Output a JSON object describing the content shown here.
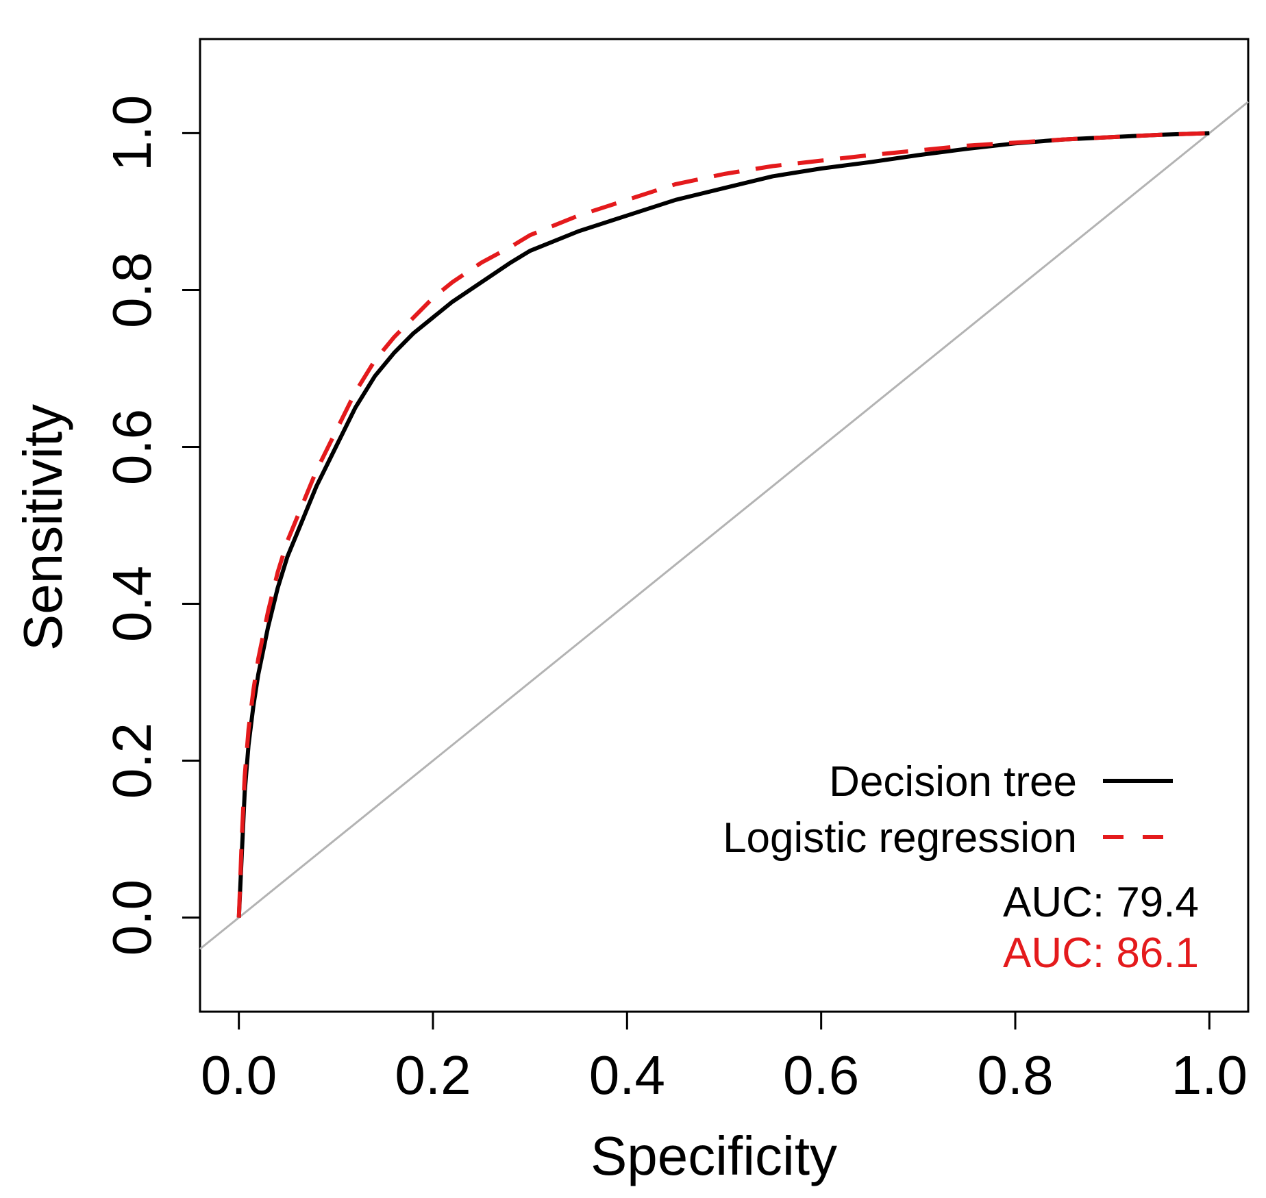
{
  "chart_data": {
    "type": "line",
    "title": "",
    "xlabel": "Specificity",
    "ylabel": "Sensitivity",
    "xlim": [
      -0.04,
      1.04
    ],
    "ylim": [
      -0.12,
      1.12
    ],
    "x_ticks": [
      0.0,
      0.2,
      0.4,
      0.6,
      0.8,
      1.0
    ],
    "y_ticks": [
      0.0,
      0.2,
      0.4,
      0.6,
      0.8,
      1.0
    ],
    "x_tick_labels": [
      "0.0",
      "0.2",
      "0.4",
      "0.6",
      "0.8",
      "1.0"
    ],
    "y_tick_labels": [
      "0.0",
      "0.2",
      "0.4",
      "0.6",
      "0.8",
      "1.0"
    ],
    "grid": false,
    "legend_position": "bottom-right",
    "reference_line": {
      "name": "chance",
      "points": [
        [
          -0.04,
          -0.04
        ],
        [
          1.04,
          1.04
        ]
      ],
      "color": "#b3b3b3"
    },
    "series": [
      {
        "name": "Decision tree",
        "color": "#000000",
        "dash": "solid",
        "auc_label": "AUC: 79.4",
        "x": [
          0.0,
          0.003,
          0.006,
          0.01,
          0.015,
          0.02,
          0.03,
          0.04,
          0.05,
          0.06,
          0.07,
          0.08,
          0.09,
          0.1,
          0.12,
          0.14,
          0.16,
          0.18,
          0.2,
          0.22,
          0.25,
          0.28,
          0.3,
          0.35,
          0.4,
          0.45,
          0.5,
          0.55,
          0.6,
          0.65,
          0.7,
          0.75,
          0.8,
          0.85,
          0.9,
          0.95,
          1.0
        ],
        "y": [
          0.0,
          0.08,
          0.16,
          0.22,
          0.27,
          0.31,
          0.37,
          0.42,
          0.46,
          0.49,
          0.52,
          0.55,
          0.575,
          0.6,
          0.65,
          0.69,
          0.72,
          0.745,
          0.765,
          0.785,
          0.81,
          0.835,
          0.85,
          0.875,
          0.895,
          0.915,
          0.93,
          0.945,
          0.955,
          0.963,
          0.972,
          0.98,
          0.987,
          0.992,
          0.995,
          0.998,
          1.0
        ]
      },
      {
        "name": "Logistic regression",
        "color": "#e41a1c",
        "dash": "dashed",
        "auc_label": "AUC: 86.1",
        "x": [
          0.0,
          0.003,
          0.006,
          0.01,
          0.015,
          0.02,
          0.03,
          0.04,
          0.05,
          0.06,
          0.07,
          0.08,
          0.09,
          0.1,
          0.12,
          0.14,
          0.16,
          0.18,
          0.2,
          0.22,
          0.25,
          0.28,
          0.3,
          0.35,
          0.4,
          0.45,
          0.5,
          0.55,
          0.6,
          0.65,
          0.7,
          0.75,
          0.8,
          0.85,
          0.9,
          0.95,
          1.0
        ],
        "y": [
          0.0,
          0.1,
          0.18,
          0.24,
          0.29,
          0.33,
          0.39,
          0.44,
          0.48,
          0.51,
          0.54,
          0.57,
          0.595,
          0.62,
          0.67,
          0.71,
          0.74,
          0.765,
          0.79,
          0.81,
          0.835,
          0.855,
          0.87,
          0.895,
          0.915,
          0.935,
          0.948,
          0.958,
          0.965,
          0.972,
          0.978,
          0.984,
          0.988,
          0.992,
          0.995,
          0.998,
          1.0
        ]
      }
    ]
  }
}
